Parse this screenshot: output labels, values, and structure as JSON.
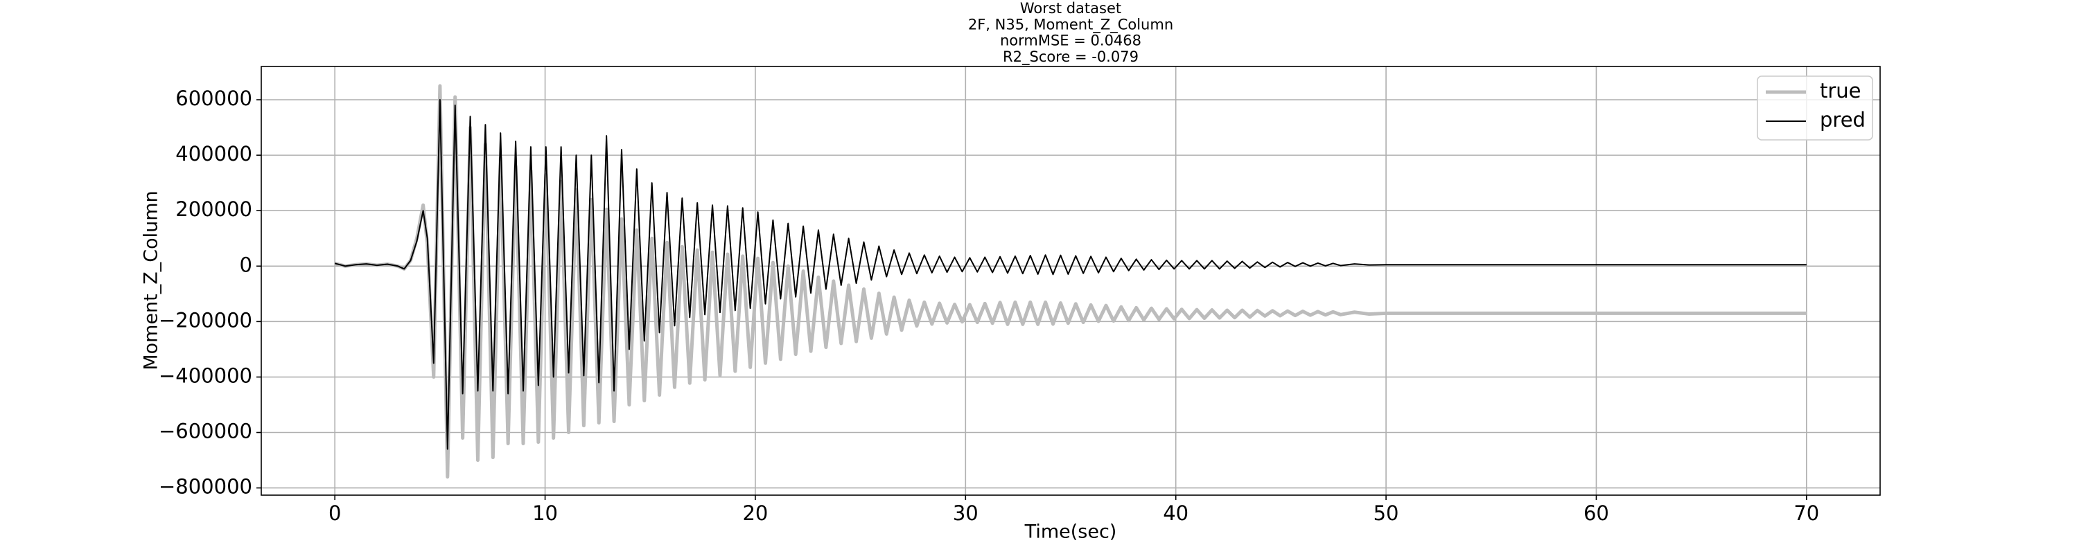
{
  "chart_data": {
    "type": "line",
    "title": [
      "Worst dataset",
      "2F, N35, Moment_Z_Column",
      "normMSE = 0.0468",
      "R2_Score = -0.079"
    ],
    "x_label": "Time(sec)",
    "y_label": "Moment_Z_Column",
    "xlim": [
      -3.5,
      73.5
    ],
    "xticks": [
      0,
      10,
      20,
      30,
      40,
      50,
      60,
      70
    ],
    "ylim": [
      -826000,
      720000
    ],
    "yticks": [
      {
        "value": -800000,
        "label": "−800000"
      },
      {
        "value": -600000,
        "label": "−600000"
      },
      {
        "value": -400000,
        "label": "−400000"
      },
      {
        "value": -200000,
        "label": "−200000"
      },
      0,
      200000,
      400000,
      600000
    ],
    "grid": true,
    "legend": "upper right",
    "x": [
      0,
      0.5,
      1,
      1.5,
      2,
      2.5,
      3,
      3.3,
      3.6,
      3.9,
      4.2,
      4.4,
      4.7,
      5.0,
      5.36,
      5.72,
      6.08,
      6.44,
      6.8,
      7.16,
      7.52,
      7.88,
      8.24,
      8.6,
      8.96,
      9.32,
      9.68,
      10.04,
      10.4,
      10.76,
      11.12,
      11.48,
      11.84,
      12.2,
      12.56,
      12.92,
      13.28,
      13.64,
      14.0,
      14.36,
      14.72,
      15.08,
      15.44,
      15.8,
      16.16,
      16.52,
      16.88,
      17.24,
      17.6,
      17.96,
      18.32,
      18.68,
      19.04,
      19.4,
      19.76,
      20.12,
      20.48,
      20.84,
      21.2,
      21.56,
      21.92,
      22.28,
      22.64,
      23.0,
      23.36,
      23.72,
      24.08,
      24.44,
      24.8,
      25.16,
      25.52,
      25.88,
      26.24,
      26.6,
      26.96,
      27.32,
      27.68,
      28.04,
      28.4,
      28.76,
      29.12,
      29.48,
      29.84,
      30.2,
      30.56,
      30.92,
      31.28,
      31.64,
      32.0,
      32.36,
      32.72,
      33.08,
      33.44,
      33.8,
      34.16,
      34.52,
      34.88,
      35.24,
      35.6,
      35.96,
      36.32,
      36.68,
      37.04,
      37.4,
      37.76,
      38.12,
      38.48,
      38.84,
      39.2,
      39.56,
      39.92,
      40.28,
      40.64,
      41.0,
      41.36,
      41.72,
      42.08,
      42.44,
      42.8,
      43.16,
      43.52,
      43.88,
      44.24,
      44.6,
      44.96,
      45.32,
      45.68,
      46.04,
      46.4,
      46.76,
      47.12,
      47.48,
      47.84,
      48.5,
      49.2,
      50,
      60,
      70
    ],
    "series": [
      {
        "name": "true",
        "color": "#bcbcbc",
        "values": [
          10000,
          0,
          5000,
          8000,
          3000,
          7000,
          0,
          -10000,
          20000,
          100000,
          220000,
          80000,
          -400000,
          650000,
          -760000,
          610000,
          -620000,
          500000,
          -700000,
          440000,
          -690000,
          390000,
          -640000,
          360000,
          -640000,
          345000,
          -635000,
          330000,
          -620000,
          305000,
          -600000,
          275000,
          -575000,
          240000,
          -565000,
          205000,
          -560000,
          170000,
          -500000,
          130000,
          -485000,
          100000,
          -465000,
          85000,
          -437000,
          70000,
          -422000,
          58000,
          -410000,
          50000,
          -394000,
          43000,
          -379000,
          36000,
          -365000,
          28000,
          -350000,
          13000,
          -336000,
          0,
          -318000,
          -18000,
          -307000,
          -40000,
          -293000,
          -54000,
          -279000,
          -69000,
          -272000,
          -83000,
          -260000,
          -98000,
          -245000,
          -112000,
          -231000,
          -123000,
          -216000,
          -130000,
          -209000,
          -134000,
          -205000,
          -138000,
          -201000,
          -139000,
          -203000,
          -135000,
          -206000,
          -131000,
          -210000,
          -130000,
          -210000,
          -130000,
          -210000,
          -130000,
          -209000,
          -133000,
          -206000,
          -136000,
          -203000,
          -140000,
          -199000,
          -142000,
          -198000,
          -147000,
          -196000,
          -150000,
          -194000,
          -152000,
          -192000,
          -154000,
          -190000,
          -156000,
          -189000,
          -157000,
          -188000,
          -158000,
          -187000,
          -159000,
          -186000,
          -159000,
          -184000,
          -160000,
          -180000,
          -161000,
          -179000,
          -162000,
          -178000,
          -163000,
          -177000,
          -164000,
          -176000,
          -165000,
          -175000,
          -166000,
          -173000,
          -170000,
          -170000,
          -170000
        ]
      },
      {
        "name": "pred",
        "color": "#000000",
        "values": [
          10000,
          0,
          5000,
          8000,
          3000,
          7000,
          0,
          -10000,
          20000,
          90000,
          200000,
          100000,
          -350000,
          600000,
          -660000,
          580000,
          -460000,
          540000,
          -450000,
          510000,
          -450000,
          480000,
          -460000,
          450000,
          -450000,
          430000,
          -430000,
          430000,
          -400000,
          430000,
          -385000,
          400000,
          -395000,
          400000,
          -420000,
          470000,
          -450000,
          420000,
          -300000,
          350000,
          -270000,
          300000,
          -240000,
          265000,
          -215000,
          245000,
          -185000,
          228000,
          -175000,
          220000,
          -167000,
          217000,
          -160000,
          210000,
          -152000,
          195000,
          -136000,
          166000,
          -118000,
          154000,
          -111000,
          144000,
          -97000,
          130000,
          -83000,
          115000,
          -69000,
          100000,
          -62000,
          87000,
          -50000,
          72000,
          -38000,
          58000,
          -30000,
          47000,
          -27000,
          40000,
          -24000,
          36000,
          -22000,
          32000,
          -20000,
          30000,
          -21000,
          32000,
          -23000,
          34000,
          -25000,
          36000,
          -27000,
          38000,
          -29000,
          40000,
          -30000,
          39000,
          -29000,
          37000,
          -26000,
          35000,
          -24000,
          32000,
          -20000,
          28000,
          -16000,
          25000,
          -14000,
          23000,
          -12000,
          21000,
          -10000,
          20000,
          -10000,
          20000,
          -10000,
          20000,
          -10000,
          18000,
          -8000,
          17000,
          -7000,
          15000,
          -5000,
          14000,
          -3000,
          13000,
          -1000,
          12000,
          0,
          11000,
          1000,
          10000,
          2000,
          8000,
          4000,
          5000,
          5000,
          5000
        ]
      }
    ]
  }
}
